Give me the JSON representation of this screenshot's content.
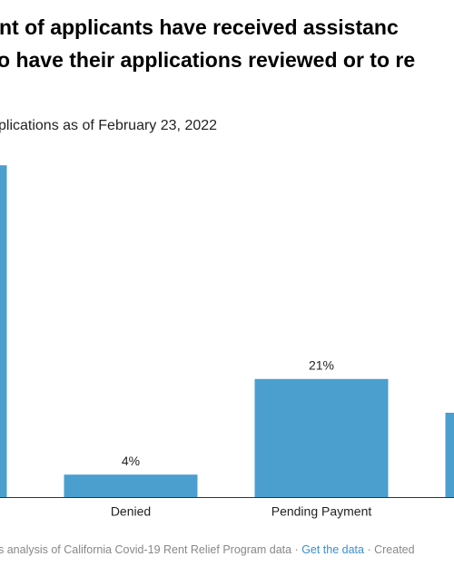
{
  "chart_data": {
    "type": "bar",
    "title": [
      "nt of applicants have received assistanc",
      "o have their applications reviewed or to re"
    ],
    "subtitle": "plications as of February 23, 2022",
    "categories": [
      null,
      "Denied",
      "Pending Payment",
      null
    ],
    "values": [
      59,
      4,
      21,
      15
    ],
    "value_labels": [
      null,
      "4%",
      "21%",
      null
    ],
    "color": "#4a9fcf",
    "ylim": [
      0,
      60
    ],
    "footer": {
      "source": "s analysis of California Covid-19 Rent Relief Program data · ",
      "link": "Get the data",
      "created": " · Created"
    }
  }
}
